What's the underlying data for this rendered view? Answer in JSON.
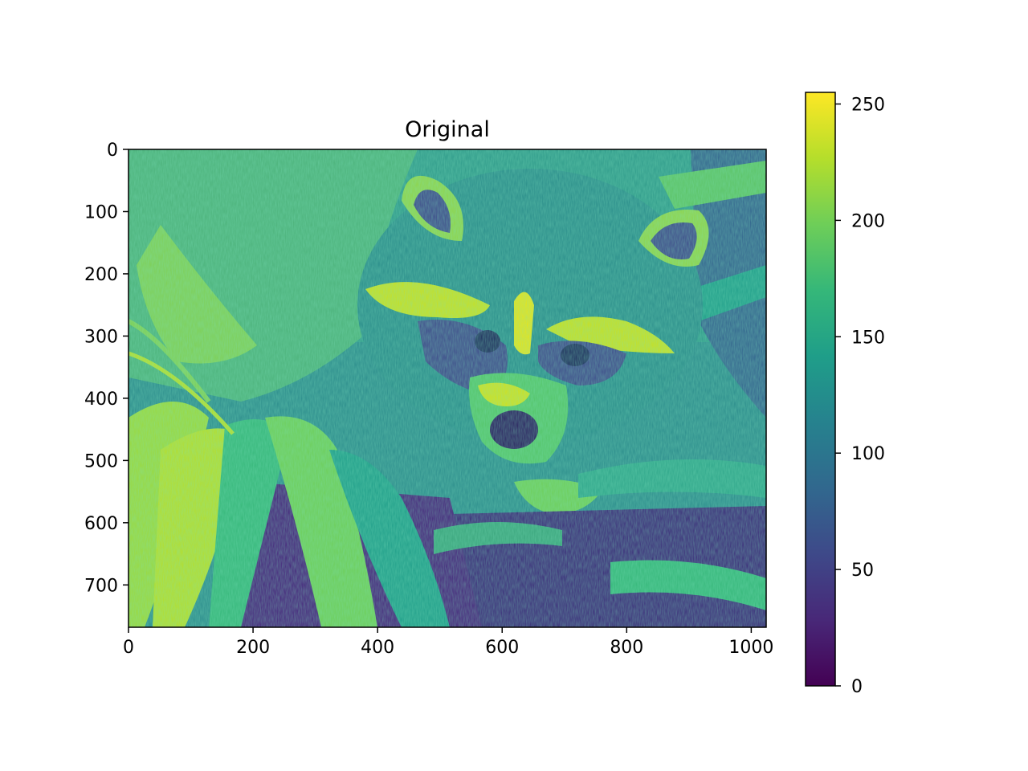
{
  "chart_data": [
    {
      "type": "heatmap",
      "title": "Original",
      "image_content": "raccoon face among palm fronds",
      "colormap": "viridis",
      "colormap_colors": [
        "#440154",
        "#482878",
        "#3e4989",
        "#31688e",
        "#26828e",
        "#1f9e89",
        "#35b779",
        "#6ece58",
        "#b5de2b",
        "#fde725"
      ],
      "x_range": [
        0,
        1024
      ],
      "y_range": [
        768,
        0
      ],
      "y_inverted": true,
      "x_ticks": [
        0,
        200,
        400,
        600,
        800,
        1000
      ],
      "y_ticks": [
        0,
        100,
        200,
        300,
        400,
        500,
        600,
        700
      ],
      "x_tick_labels": [
        "0",
        "200",
        "400",
        "600",
        "800",
        "1000"
      ],
      "y_tick_labels": [
        "0",
        "100",
        "200",
        "300",
        "400",
        "500",
        "600",
        "700"
      ],
      "xlabel": "",
      "ylabel": ""
    },
    {
      "type": "colorbar",
      "range": [
        0,
        255
      ],
      "ticks": [
        0,
        50,
        100,
        150,
        200,
        250
      ],
      "tick_labels": [
        "0",
        "50",
        "100",
        "150",
        "200",
        "250"
      ],
      "orientation": "vertical",
      "colormap": "viridis"
    }
  ]
}
